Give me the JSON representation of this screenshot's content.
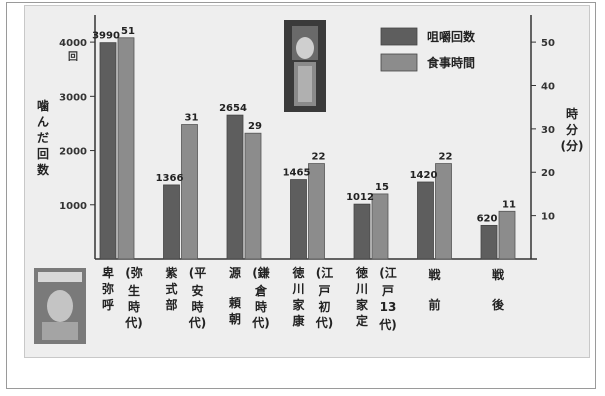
{
  "colors": {
    "bar_dark": "#5e5e5e",
    "bar_light": "#8c8c8c",
    "panel": "#eeeeee"
  },
  "chart_data": {
    "type": "bar",
    "y_left_label": [
      "噛",
      "ん",
      "だ",
      "回",
      "数"
    ],
    "y_left_unit": "回",
    "y_left_ticks": [
      1000,
      2000,
      3000,
      4000
    ],
    "y_left_lim": [
      0,
      4500
    ],
    "y_right_label": [
      "時",
      "分",
      "(分)"
    ],
    "y_right_ticks": [
      10,
      20,
      30,
      40,
      50
    ],
    "y_right_lim": [
      0,
      56.25
    ],
    "series": [
      {
        "name": "咀嚼回数",
        "axis": "left",
        "values": [
          3990,
          1366,
          2654,
          1465,
          1012,
          1420,
          620
        ]
      },
      {
        "name": "食事時間",
        "axis": "right",
        "values": [
          51,
          31,
          29,
          22,
          15,
          22,
          11
        ]
      }
    ],
    "categories": [
      {
        "lines": [
          [
            "卑",
            "弥",
            "呼"
          ],
          [
            "(弥",
            "生",
            "時",
            "代)"
          ]
        ]
      },
      {
        "lines": [
          [
            "紫",
            "式",
            "部"
          ],
          [
            "(平",
            "安",
            "時",
            "代)"
          ]
        ]
      },
      {
        "lines": [
          [
            "源",
            "",
            "頼",
            "朝"
          ],
          [
            "(鎌",
            "倉",
            "時",
            "代)"
          ]
        ]
      },
      {
        "lines": [
          [
            "徳",
            "川",
            "家",
            "康"
          ],
          [
            "(江",
            "戸",
            "初",
            "代)"
          ]
        ]
      },
      {
        "lines": [
          [
            "徳",
            "川",
            "家",
            "定"
          ],
          [
            "(江",
            "戸",
            "13",
            "代)"
          ]
        ]
      },
      {
        "lines": [
          [
            "戦",
            "",
            "前"
          ]
        ]
      },
      {
        "lines": [
          [
            "戦",
            "",
            "後"
          ]
        ]
      }
    ]
  }
}
